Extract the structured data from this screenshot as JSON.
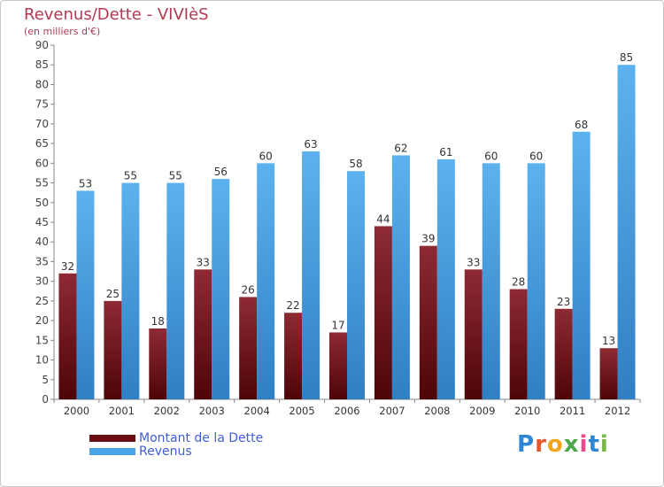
{
  "header": {
    "title": "Revenus/Dette - VIVIèS",
    "subtitle": "(en milliers d'€)"
  },
  "colors": {
    "debt": "#7a1f26",
    "revenue": "#4aa3e6",
    "title": "#b03a52",
    "legend_text": "#3f5ed8"
  },
  "legend": {
    "items": [
      {
        "label": "Montant de la Dette",
        "color": "#6b0f14"
      },
      {
        "label": "Revenus",
        "color": "#4aa3e6"
      }
    ]
  },
  "logo": {
    "text": "Proxiti"
  },
  "chart_data": {
    "type": "bar",
    "categories": [
      "2000",
      "2001",
      "2002",
      "2003",
      "2004",
      "2005",
      "2006",
      "2007",
      "2008",
      "2009",
      "2010",
      "2011",
      "2012"
    ],
    "series": [
      {
        "name": "Montant de la Dette",
        "values": [
          32,
          25,
          18,
          33,
          26,
          22,
          17,
          44,
          39,
          33,
          28,
          23,
          13
        ]
      },
      {
        "name": "Revenus",
        "values": [
          53,
          55,
          55,
          56,
          60,
          63,
          58,
          62,
          61,
          60,
          60,
          68,
          85
        ]
      }
    ],
    "ylim": [
      0,
      90
    ],
    "yticks": [
      0,
      5,
      10,
      15,
      20,
      25,
      30,
      35,
      40,
      45,
      50,
      55,
      60,
      65,
      70,
      75,
      80,
      85,
      90
    ],
    "grid": false,
    "legend_position": "bottom-left"
  }
}
